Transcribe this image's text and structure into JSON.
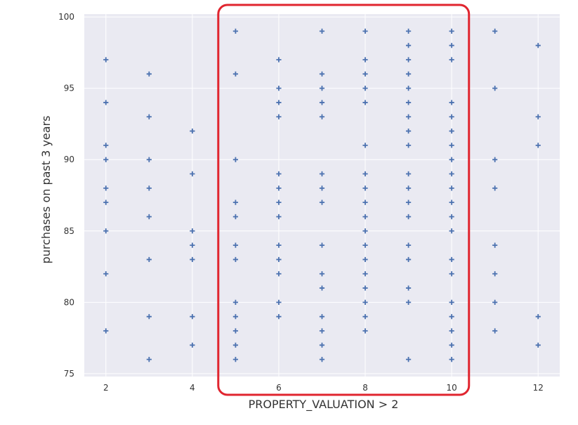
{
  "chart_data": {
    "type": "scatter",
    "title": "",
    "xlabel": "PROPERTY_VALUATION > 2",
    "ylabel": "purchases on past 3 years",
    "xlim": [
      1.5,
      12.5
    ],
    "ylim": [
      74.8,
      100.2
    ],
    "xticks": [
      2,
      4,
      6,
      8,
      10,
      12
    ],
    "yticks": [
      75,
      80,
      85,
      90,
      95,
      100
    ],
    "grid": true,
    "marker": "plus",
    "colors": {
      "background": "#eaeaf2",
      "grid": "#ffffff",
      "marker": "#4c72b0",
      "highlight": "#e0252f"
    },
    "highlight_box": {
      "x_range": [
        4.6,
        10.4
      ],
      "y_range": [
        74.6,
        101.2
      ]
    },
    "series": [
      {
        "points": [
          [
            2,
            97
          ],
          [
            2,
            94
          ],
          [
            2,
            91
          ],
          [
            2,
            90
          ],
          [
            2,
            88
          ],
          [
            2,
            87
          ],
          [
            2,
            85
          ],
          [
            2,
            82
          ],
          [
            2,
            78
          ],
          [
            3,
            96
          ],
          [
            3,
            93
          ],
          [
            3,
            90
          ],
          [
            3,
            88
          ],
          [
            3,
            86
          ],
          [
            3,
            83
          ],
          [
            3,
            79
          ],
          [
            3,
            76
          ],
          [
            4,
            92
          ],
          [
            4,
            89
          ],
          [
            4,
            85
          ],
          [
            4,
            84
          ],
          [
            4,
            83
          ],
          [
            4,
            79
          ],
          [
            4,
            77
          ],
          [
            5,
            99
          ],
          [
            5,
            96
          ],
          [
            5,
            90
          ],
          [
            5,
            87
          ],
          [
            5,
            86
          ],
          [
            5,
            84
          ],
          [
            5,
            83
          ],
          [
            5,
            80
          ],
          [
            5,
            79
          ],
          [
            5,
            78
          ],
          [
            5,
            77
          ],
          [
            5,
            76
          ],
          [
            6,
            97
          ],
          [
            6,
            95
          ],
          [
            6,
            94
          ],
          [
            6,
            93
          ],
          [
            6,
            89
          ],
          [
            6,
            88
          ],
          [
            6,
            87
          ],
          [
            6,
            86
          ],
          [
            6,
            84
          ],
          [
            6,
            83
          ],
          [
            6,
            82
          ],
          [
            6,
            80
          ],
          [
            6,
            79
          ],
          [
            7,
            99
          ],
          [
            7,
            96
          ],
          [
            7,
            95
          ],
          [
            7,
            94
          ],
          [
            7,
            93
          ],
          [
            7,
            89
          ],
          [
            7,
            88
          ],
          [
            7,
            87
          ],
          [
            7,
            84
          ],
          [
            7,
            82
          ],
          [
            7,
            81
          ],
          [
            7,
            79
          ],
          [
            7,
            78
          ],
          [
            7,
            77
          ],
          [
            7,
            76
          ],
          [
            8,
            99
          ],
          [
            8,
            97
          ],
          [
            8,
            96
          ],
          [
            8,
            95
          ],
          [
            8,
            94
          ],
          [
            8,
            91
          ],
          [
            8,
            89
          ],
          [
            8,
            88
          ],
          [
            8,
            87
          ],
          [
            8,
            86
          ],
          [
            8,
            85
          ],
          [
            8,
            84
          ],
          [
            8,
            83
          ],
          [
            8,
            82
          ],
          [
            8,
            81
          ],
          [
            8,
            80
          ],
          [
            8,
            79
          ],
          [
            8,
            78
          ],
          [
            9,
            99
          ],
          [
            9,
            98
          ],
          [
            9,
            97
          ],
          [
            9,
            96
          ],
          [
            9,
            95
          ],
          [
            9,
            94
          ],
          [
            9,
            93
          ],
          [
            9,
            92
          ],
          [
            9,
            91
          ],
          [
            9,
            89
          ],
          [
            9,
            88
          ],
          [
            9,
            87
          ],
          [
            9,
            86
          ],
          [
            9,
            84
          ],
          [
            9,
            83
          ],
          [
            9,
            81
          ],
          [
            9,
            80
          ],
          [
            9,
            76
          ],
          [
            10,
            99
          ],
          [
            10,
            98
          ],
          [
            10,
            97
          ],
          [
            10,
            94
          ],
          [
            10,
            93
          ],
          [
            10,
            92
          ],
          [
            10,
            91
          ],
          [
            10,
            90
          ],
          [
            10,
            89
          ],
          [
            10,
            88
          ],
          [
            10,
            87
          ],
          [
            10,
            86
          ],
          [
            10,
            85
          ],
          [
            10,
            83
          ],
          [
            10,
            82
          ],
          [
            10,
            80
          ],
          [
            10,
            79
          ],
          [
            10,
            78
          ],
          [
            10,
            77
          ],
          [
            10,
            76
          ],
          [
            11,
            99
          ],
          [
            11,
            95
          ],
          [
            11,
            90
          ],
          [
            11,
            88
          ],
          [
            11,
            84
          ],
          [
            11,
            82
          ],
          [
            11,
            80
          ],
          [
            11,
            78
          ],
          [
            12,
            98
          ],
          [
            12,
            93
          ],
          [
            12,
            91
          ],
          [
            12,
            79
          ],
          [
            12,
            77
          ]
        ]
      }
    ]
  }
}
